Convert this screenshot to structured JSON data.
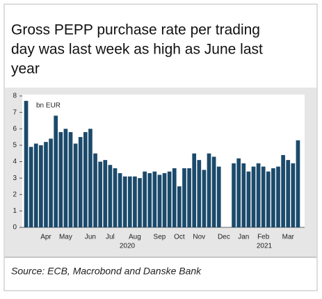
{
  "chart_data": {
    "type": "bar",
    "title": [
      "Gross PEPP purchase  rate per trading",
      "day was last week as high as June last",
      "year"
    ],
    "y_unit": "bn EUR",
    "source": "Source: ECB, Macrobond and Danske Bank",
    "year_labels": [
      "2020",
      "2021"
    ],
    "categories": [
      null,
      null,
      null,
      null,
      "Apr",
      null,
      null,
      null,
      "May",
      null,
      null,
      null,
      null,
      "Jun",
      null,
      null,
      null,
      "Jul",
      null,
      null,
      null,
      null,
      "Aug",
      null,
      null,
      null,
      null,
      "Sep",
      null,
      null,
      null,
      "Oct",
      null,
      null,
      null,
      "Nov",
      null,
      null,
      null,
      null,
      "Dec",
      null,
      null,
      null,
      "Jan",
      null,
      null,
      null,
      "Feb",
      null,
      null,
      null,
      null,
      "Mar",
      null,
      null
    ],
    "values": [
      7.7,
      4.9,
      5.1,
      5.0,
      5.2,
      5.4,
      6.8,
      5.8,
      6.0,
      5.8,
      5.1,
      5.5,
      5.8,
      6.0,
      4.5,
      4.0,
      4.1,
      3.8,
      3.6,
      3.3,
      3.1,
      3.1,
      3.1,
      3.0,
      3.4,
      3.3,
      3.4,
      3.2,
      3.3,
      3.4,
      3.6,
      2.5,
      3.6,
      3.6,
      4.5,
      4.1,
      3.5,
      4.5,
      4.3,
      3.7,
      null,
      null,
      3.9,
      4.2,
      3.9,
      3.4,
      3.7,
      3.9,
      3.7,
      3.4,
      3.6,
      3.7,
      4.4,
      4.1,
      3.9,
      5.3
    ],
    "color": "#1b4a6b",
    "ylim": [
      0,
      8
    ],
    "yticks": [
      0,
      1,
      2,
      3,
      4,
      5,
      6,
      7,
      8
    ]
  }
}
